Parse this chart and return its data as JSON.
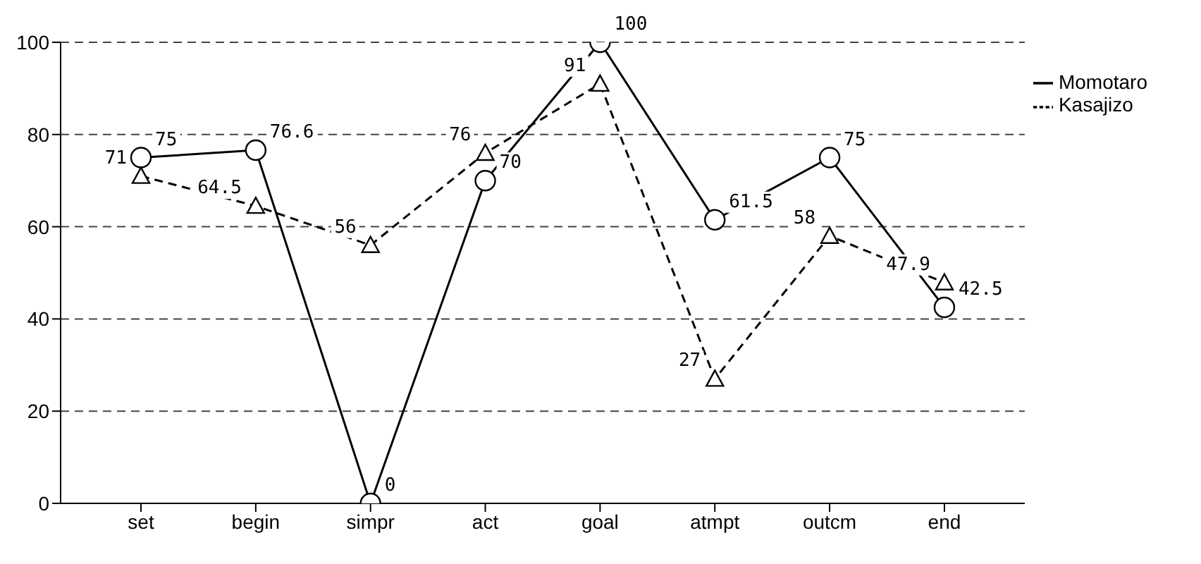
{
  "chart_data": {
    "type": "line",
    "categories": [
      "set",
      "begin",
      "simpr",
      "act",
      "goal",
      "atmpt",
      "outcm",
      "end"
    ],
    "series": [
      {
        "name": "Momotaro",
        "color": "#000000",
        "marker": "circle",
        "line_style": "solid",
        "values": [
          75,
          76.6,
          0,
          70,
          100,
          61.5,
          75,
          42.5
        ]
      },
      {
        "name": "Kasajizo",
        "color": "#000000",
        "marker": "triangle",
        "line_style": "dashed",
        "values": [
          71,
          64.5,
          56,
          76,
          91,
          27,
          58,
          47.9
        ]
      }
    ],
    "ylim": [
      0,
      100
    ],
    "yticks": [
      0,
      20,
      40,
      60,
      80,
      100
    ],
    "grid": "y",
    "legend": "top right",
    "data_labels": true
  }
}
